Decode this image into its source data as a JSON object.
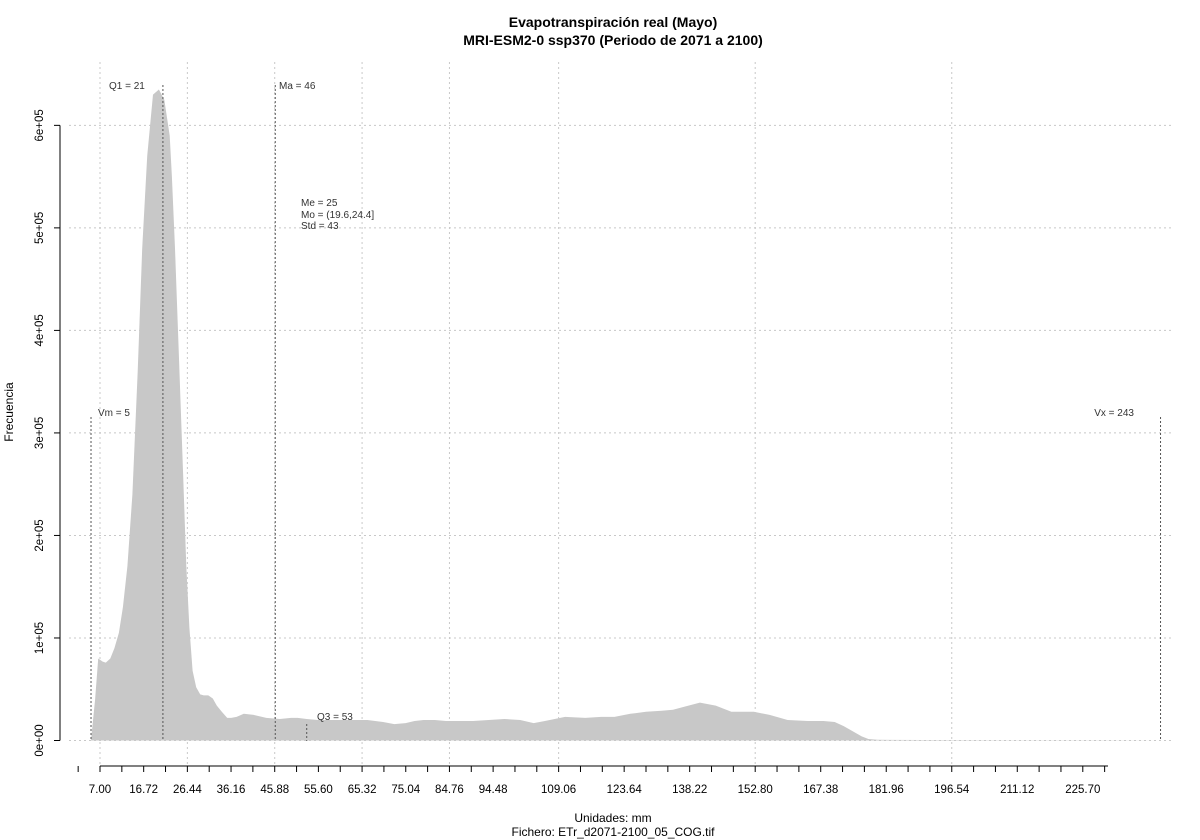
{
  "chart_data": {
    "type": "area",
    "title": "Evapotranspiración real (Mayo)",
    "subtitle": "MRI-ESM2-0 ssp370 (Periodo de 2071 a 2100)",
    "xlabel": "Unidades: mm",
    "caption": "Fichero: ETr_d2071-2100_05_COG.tif",
    "ylabel": "Frecuencia",
    "xlim": [
      2,
      248
    ],
    "ylim": [
      0,
      640000
    ],
    "grid": true,
    "x_ticks": [
      7.0,
      16.72,
      26.44,
      36.16,
      45.88,
      55.6,
      65.32,
      75.04,
      84.76,
      94.48,
      109.06,
      123.64,
      138.22,
      152.8,
      167.38,
      181.96,
      196.54,
      211.12,
      225.7
    ],
    "x_tick_labels": [
      "7.00",
      "16.72",
      "26.44",
      "36.16",
      "45.88",
      "55.60",
      "65.32",
      "75.04",
      "84.76",
      "94.48",
      "109.06",
      "123.64",
      "138.22",
      "152.80",
      "167.38",
      "181.96",
      "196.54",
      "211.12",
      "225.70"
    ],
    "x_minor_step": 4.86,
    "y_ticks": [
      0,
      100000,
      200000,
      300000,
      400000,
      500000,
      600000
    ],
    "y_tick_labels": [
      "0e+00",
      "1e+05",
      "2e+05",
      "3e+05",
      "4e+05",
      "5e+05",
      "6e+05"
    ],
    "x_grid": [
      7.0,
      26.44,
      45.88,
      65.32,
      84.76,
      109.06,
      152.8,
      196.54
    ],
    "series": [
      {
        "color": "#c8c8c8",
        "x": [
          5,
          5.9,
          6.6,
          7.6,
          8.3,
          9.3,
          10.2,
          11.2,
          12.1,
          13.1,
          14.2,
          15.4,
          16.4,
          17.5,
          18.8,
          20.1,
          21.3,
          22.5,
          23.0,
          23.7,
          24.6,
          25.5,
          26.2,
          26.9,
          27.6,
          28.4,
          29.3,
          30.1,
          31.1,
          32.1,
          33.0,
          34.1,
          35.3,
          36.2,
          37.4,
          39.0,
          41.2,
          44.0,
          47.0,
          49.5,
          51.0,
          53.0,
          55.5,
          58.0,
          61.5,
          66.5,
          70.0,
          72.5,
          75.0,
          77.0,
          79.0,
          81.5,
          84.0,
          86.5,
          90.0,
          93.5,
          97.0,
          100.5,
          103.5,
          106.0,
          110.5,
          115.0,
          118.5,
          121.5,
          125.0,
          128.5,
          132.0,
          134.5,
          137.0,
          140.5,
          144.0,
          147.5,
          150.0,
          152.5,
          156.0,
          160.0,
          164.5,
          168.0,
          170.5,
          172.5,
          174.5,
          176.5,
          178.0,
          180.0,
          190.0,
          200.0,
          210.0,
          220.0,
          230.0,
          243
        ],
        "y": [
          0,
          40000,
          80000,
          77000,
          76000,
          80000,
          90000,
          105000,
          130000,
          170000,
          240000,
          360000,
          480000,
          570000,
          630000,
          635000,
          625000,
          590000,
          550000,
          480000,
          370000,
          260000,
          170000,
          110000,
          68000,
          52000,
          45000,
          44000,
          44000,
          41000,
          34000,
          28000,
          22000,
          22000,
          23000,
          26000,
          25000,
          22000,
          21000,
          22000,
          22000,
          21000,
          20000,
          20000,
          20000,
          20000,
          18000,
          16000,
          17000,
          19000,
          20000,
          20000,
          19000,
          19000,
          19000,
          20000,
          21000,
          20000,
          17000,
          19000,
          23000,
          22000,
          23000,
          23000,
          26000,
          28000,
          29000,
          30000,
          33000,
          37000,
          34000,
          28000,
          28000,
          28000,
          25000,
          20000,
          19000,
          19000,
          18000,
          14000,
          9000,
          4000,
          1500,
          700,
          500,
          400,
          300,
          300,
          300,
          0
        ]
      }
    ],
    "annotations": {
      "vm": "Vm = 5",
      "q1": "Q1 = 21",
      "ma": "Ma = 46",
      "me": "Me = 25",
      "mo": "Mo = (19.6,24.4]",
      "std": "Std = 43",
      "q3": "Q3 = 53",
      "vx": "Vx = 243"
    },
    "ref_lines": {
      "vm": 5,
      "q1": 21,
      "ma": 46,
      "q3": 53,
      "vx": 243
    }
  }
}
